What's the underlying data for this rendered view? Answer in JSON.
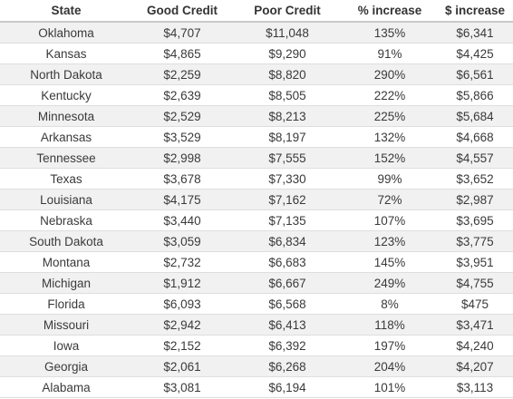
{
  "table": {
    "headers": [
      "State",
      "Good Credit",
      "Poor Credit",
      "% increase",
      "$ increase"
    ],
    "rows": [
      [
        "Oklahoma",
        "$4,707",
        "$11,048",
        "135%",
        "$6,341"
      ],
      [
        "Kansas",
        "$4,865",
        "$9,290",
        "91%",
        "$4,425"
      ],
      [
        "North Dakota",
        "$2,259",
        "$8,820",
        "290%",
        "$6,561"
      ],
      [
        "Kentucky",
        "$2,639",
        "$8,505",
        "222%",
        "$5,866"
      ],
      [
        "Minnesota",
        "$2,529",
        "$8,213",
        "225%",
        "$5,684"
      ],
      [
        "Arkansas",
        "$3,529",
        "$8,197",
        "132%",
        "$4,668"
      ],
      [
        "Tennessee",
        "$2,998",
        "$7,555",
        "152%",
        "$4,557"
      ],
      [
        "Texas",
        "$3,678",
        "$7,330",
        "99%",
        "$3,652"
      ],
      [
        "Louisiana",
        "$4,175",
        "$7,162",
        "72%",
        "$2,987"
      ],
      [
        "Nebraska",
        "$3,440",
        "$7,135",
        "107%",
        "$3,695"
      ],
      [
        "South Dakota",
        "$3,059",
        "$6,834",
        "123%",
        "$3,775"
      ],
      [
        "Montana",
        "$2,732",
        "$6,683",
        "145%",
        "$3,951"
      ],
      [
        "Michigan",
        "$1,912",
        "$6,667",
        "249%",
        "$4,755"
      ],
      [
        "Florida",
        "$6,093",
        "$6,568",
        "8%",
        "$475"
      ],
      [
        "Missouri",
        "$2,942",
        "$6,413",
        "118%",
        "$3,471"
      ],
      [
        "Iowa",
        "$2,152",
        "$6,392",
        "197%",
        "$4,240"
      ],
      [
        "Georgia",
        "$2,061",
        "$6,268",
        "204%",
        "$4,207"
      ],
      [
        "Alabama",
        "$3,081",
        "$6,194",
        "101%",
        "$3,113"
      ]
    ]
  },
  "colors": {
    "row_stripe": "#f1f1f1",
    "row_plain": "#ffffff",
    "header_rule": "#c9c9c9",
    "row_rule": "#dedede",
    "text": "#3a3a3a"
  }
}
